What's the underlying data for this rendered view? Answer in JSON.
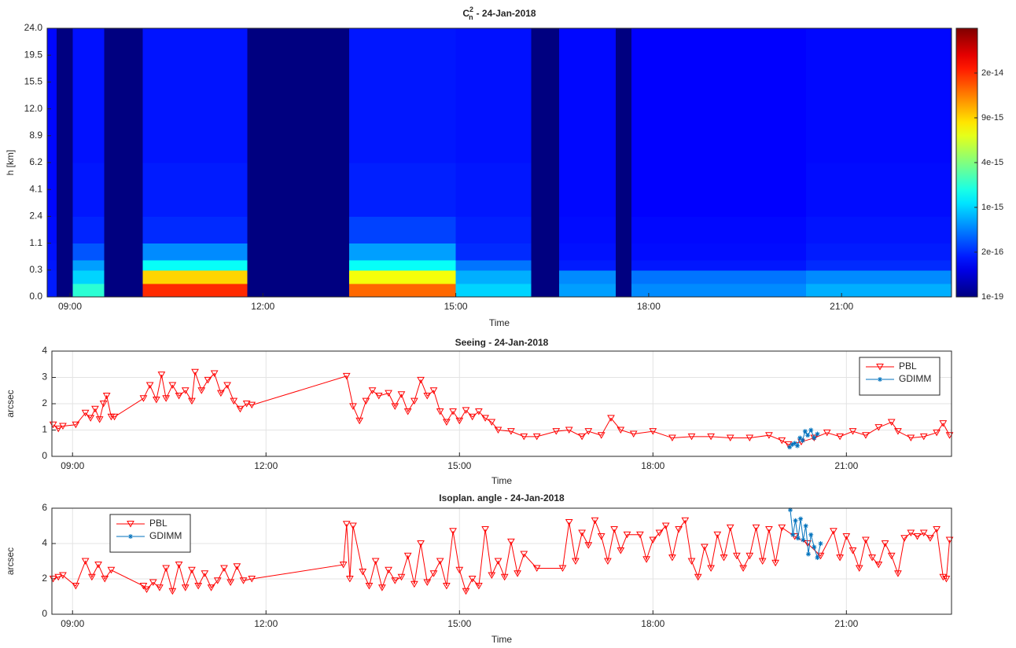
{
  "chart_data": [
    {
      "type": "heatmap",
      "title_symbol": "C",
      "title_sup": "2",
      "title_sub": "n",
      "title": "- 24-Jan-2018",
      "x_label": "Time",
      "y_label": "h [km]",
      "xlim": [
        8.645,
        22.71
      ],
      "xticks": [
        {
          "value": 9,
          "label": "09:00"
        },
        {
          "value": 12,
          "label": "12:00"
        },
        {
          "value": 15,
          "label": "15:00"
        },
        {
          "value": 18,
          "label": "18:00"
        },
        {
          "value": 21,
          "label": "21:00"
        }
      ],
      "ylim": [
        0,
        24
      ],
      "yticks": [
        {
          "value": 0,
          "label": "0.0"
        },
        0.3,
        1.1,
        2.4,
        4.1,
        6.2,
        8.9,
        {
          "value": 12,
          "label": "12.0"
        },
        15.5,
        19.5,
        {
          "value": 24,
          "label": "24.0"
        }
      ],
      "x_edges": [
        8.645,
        8.79,
        9.04,
        9.53,
        10.13,
        11.76,
        13.34,
        15.0,
        16.17,
        16.61,
        17.49,
        17.73,
        20.45,
        22.71
      ],
      "y_edges": [
        0,
        0.15,
        0.3,
        0.6,
        1.1,
        2.4,
        6.2,
        24
      ],
      "z": [
        [
          1e-16,
          1e-19,
          2e-15,
          1e-19,
          2e-14,
          1e-19,
          1.5e-14,
          1e-15,
          1e-19,
          6e-16,
          1e-19,
          5e-16,
          7e-16
        ],
        [
          1e-16,
          1e-19,
          1e-15,
          1e-19,
          9e-15,
          1e-19,
          7e-15,
          7e-16,
          1e-19,
          5e-16,
          1e-19,
          4e-16,
          5e-16
        ],
        [
          8e-17,
          1e-19,
          6e-16,
          1e-19,
          1.5e-15,
          1e-19,
          1.5e-15,
          4e-16,
          1e-19,
          1e-16,
          1e-19,
          8e-17,
          2e-16
        ],
        [
          6e-17,
          1e-19,
          3e-16,
          1e-19,
          5e-16,
          1e-19,
          6e-16,
          2e-16,
          1e-19,
          6e-17,
          1e-19,
          5e-17,
          1e-16
        ],
        [
          5e-17,
          1e-19,
          1.5e-16,
          1e-19,
          2e-16,
          1e-19,
          2.5e-16,
          1.2e-16,
          1e-19,
          5e-17,
          1e-19,
          4e-17,
          7e-17
        ],
        [
          4e-17,
          1e-19,
          8e-17,
          1e-19,
          1e-16,
          1e-19,
          1.2e-16,
          8e-17,
          1e-19,
          4e-17,
          1e-19,
          3e-17,
          5e-17
        ],
        [
          4e-17,
          1e-19,
          6e-17,
          1e-19,
          7e-17,
          1e-19,
          8e-17,
          6e-17,
          1e-19,
          4e-17,
          1e-19,
          3e-17,
          4e-17
        ]
      ],
      "colormap": "jet",
      "colorbar": {
        "clim": [
          1e-19,
          4e-14
        ],
        "ticks": [
          1e-19,
          2e-16,
          1e-15,
          4e-15,
          9e-15,
          2e-14
        ]
      },
      "grid": false
    },
    {
      "type": "line",
      "title": "Seeing - 24-Jan-2018",
      "x_label": "Time",
      "y_label": "arcsec",
      "xlim": [
        8.68,
        22.63
      ],
      "xticks": [
        {
          "value": 9,
          "label": "09:00"
        },
        {
          "value": 12,
          "label": "12:00"
        },
        {
          "value": 15,
          "label": "15:00"
        },
        {
          "value": 18,
          "label": "18:00"
        },
        {
          "value": 21,
          "label": "21:00"
        }
      ],
      "ylim": [
        0,
        4
      ],
      "yticks": [
        0,
        1,
        2,
        3,
        4
      ],
      "grid": true,
      "legend": "upper right",
      "series": [
        {
          "name": "PBL",
          "color": "#ff0000",
          "marker": "triangle-down",
          "x": [
            8.7,
            8.78,
            8.85,
            9.05,
            9.2,
            9.28,
            9.35,
            9.42,
            9.48,
            9.53,
            9.6,
            9.65,
            10.1,
            10.2,
            10.3,
            10.38,
            10.45,
            10.55,
            10.65,
            10.75,
            10.85,
            10.9,
            11.0,
            11.1,
            11.2,
            11.3,
            11.4,
            11.5,
            11.6,
            11.7,
            11.78,
            13.25,
            13.35,
            13.45,
            13.55,
            13.65,
            13.75,
            13.9,
            14.0,
            14.1,
            14.2,
            14.3,
            14.4,
            14.5,
            14.6,
            14.7,
            14.8,
            14.9,
            15.0,
            15.1,
            15.2,
            15.3,
            15.4,
            15.5,
            15.6,
            15.8,
            16.0,
            16.2,
            16.5,
            16.7,
            16.9,
            17.0,
            17.2,
            17.35,
            17.5,
            17.7,
            18.0,
            18.3,
            18.6,
            18.9,
            19.2,
            19.5,
            19.8,
            20.0,
            20.1,
            20.3,
            20.5,
            20.7,
            20.9,
            21.1,
            21.3,
            21.5,
            21.7,
            21.8,
            22.0,
            22.2,
            22.4,
            22.5,
            22.6
          ],
          "values": [
            1.2,
            1.05,
            1.15,
            1.2,
            1.65,
            1.45,
            1.8,
            1.4,
            2.0,
            2.3,
            1.5,
            1.5,
            2.2,
            2.7,
            2.15,
            3.1,
            2.2,
            2.7,
            2.3,
            2.5,
            2.1,
            3.2,
            2.5,
            2.9,
            3.15,
            2.4,
            2.7,
            2.1,
            1.8,
            2.0,
            1.95,
            3.05,
            1.9,
            1.35,
            2.1,
            2.5,
            2.3,
            2.4,
            1.9,
            2.35,
            1.7,
            2.1,
            2.9,
            2.3,
            2.5,
            1.7,
            1.3,
            1.7,
            1.35,
            1.75,
            1.5,
            1.7,
            1.45,
            1.3,
            1.0,
            0.95,
            0.75,
            0.75,
            0.95,
            1.0,
            0.75,
            0.95,
            0.8,
            1.45,
            1.0,
            0.85,
            0.95,
            0.7,
            0.75,
            0.75,
            0.7,
            0.7,
            0.8,
            0.6,
            0.45,
            0.55,
            0.7,
            0.9,
            0.75,
            0.95,
            0.8,
            1.1,
            1.3,
            0.95,
            0.7,
            0.75,
            0.9,
            1.25,
            0.8
          ]
        },
        {
          "name": "GDIMM",
          "color": "#0072bd",
          "marker": "asterisk",
          "x": [
            20.12,
            20.16,
            20.2,
            20.24,
            20.28,
            20.32,
            20.36,
            20.4,
            20.45,
            20.5,
            20.55
          ],
          "values": [
            0.35,
            0.45,
            0.5,
            0.4,
            0.7,
            0.6,
            0.95,
            0.8,
            1.0,
            0.7,
            0.85
          ]
        }
      ]
    },
    {
      "type": "line",
      "title": "Isoplan. angle - 24-Jan-2018",
      "x_label": "Time",
      "y_label": "arcsec",
      "xlim": [
        8.68,
        22.63
      ],
      "xticks": [
        {
          "value": 9,
          "label": "09:00"
        },
        {
          "value": 12,
          "label": "12:00"
        },
        {
          "value": 15,
          "label": "15:00"
        },
        {
          "value": 18,
          "label": "18:00"
        },
        {
          "value": 21,
          "label": "21:00"
        }
      ],
      "ylim": [
        0,
        6
      ],
      "yticks": [
        0,
        2,
        4,
        6
      ],
      "grid": true,
      "legend": "upper left",
      "series": [
        {
          "name": "PBL",
          "color": "#ff0000",
          "marker": "triangle-down",
          "x": [
            8.7,
            8.78,
            8.85,
            9.05,
            9.2,
            9.3,
            9.4,
            9.5,
            9.6,
            10.1,
            10.15,
            10.25,
            10.35,
            10.45,
            10.55,
            10.65,
            10.75,
            10.85,
            10.95,
            11.05,
            11.15,
            11.25,
            11.35,
            11.45,
            11.55,
            11.65,
            11.78,
            13.2,
            13.25,
            13.3,
            13.35,
            13.5,
            13.6,
            13.7,
            13.8,
            13.9,
            14.0,
            14.1,
            14.2,
            14.3,
            14.4,
            14.5,
            14.6,
            14.7,
            14.8,
            14.9,
            15.0,
            15.1,
            15.2,
            15.3,
            15.4,
            15.5,
            15.6,
            15.7,
            15.8,
            15.9,
            16.0,
            16.2,
            16.6,
            16.7,
            16.8,
            16.9,
            17.0,
            17.1,
            17.2,
            17.3,
            17.4,
            17.5,
            17.6,
            17.8,
            17.9,
            18.0,
            18.1,
            18.2,
            18.3,
            18.4,
            18.5,
            18.6,
            18.7,
            18.8,
            18.9,
            19.0,
            19.1,
            19.2,
            19.3,
            19.4,
            19.5,
            19.6,
            19.7,
            19.8,
            19.9,
            20.0,
            20.2,
            20.4,
            20.6,
            20.8,
            20.9,
            21.0,
            21.1,
            21.2,
            21.3,
            21.4,
            21.5,
            21.6,
            21.7,
            21.8,
            21.9,
            22.0,
            22.1,
            22.2,
            22.3,
            22.4,
            22.5,
            22.55,
            22.6
          ],
          "values": [
            2.0,
            2.1,
            2.2,
            1.6,
            3.0,
            2.1,
            2.8,
            2.0,
            2.5,
            1.6,
            1.4,
            1.8,
            1.5,
            2.6,
            1.3,
            2.8,
            1.5,
            2.5,
            1.6,
            2.3,
            1.5,
            1.9,
            2.6,
            1.8,
            2.7,
            1.9,
            2.0,
            2.8,
            5.1,
            2.0,
            5.0,
            2.4,
            1.6,
            3.0,
            1.5,
            2.5,
            1.9,
            2.1,
            3.3,
            1.7,
            4.0,
            1.8,
            2.3,
            3.0,
            1.6,
            4.7,
            2.5,
            1.3,
            2.0,
            1.6,
            4.8,
            2.2,
            3.0,
            2.1,
            4.1,
            2.3,
            3.4,
            2.6,
            2.6,
            5.2,
            3.0,
            4.6,
            3.9,
            5.3,
            4.4,
            3.0,
            4.8,
            3.6,
            4.5,
            4.5,
            3.1,
            4.2,
            4.6,
            5.0,
            3.2,
            4.8,
            5.3,
            3.0,
            2.1,
            3.8,
            2.6,
            4.5,
            3.2,
            4.9,
            3.3,
            2.6,
            3.3,
            4.9,
            3.0,
            4.8,
            2.9,
            4.9,
            4.4,
            4.0,
            3.3,
            4.7,
            3.2,
            4.4,
            3.6,
            2.6,
            4.2,
            3.2,
            2.8,
            4.0,
            3.3,
            2.3,
            4.3,
            4.6,
            4.4,
            4.6,
            4.3,
            4.8,
            2.1,
            2.0,
            4.2
          ]
        },
        {
          "name": "GDIMM",
          "color": "#0072bd",
          "marker": "asterisk",
          "x": [
            20.13,
            20.17,
            20.21,
            20.25,
            20.29,
            20.33,
            20.37,
            20.41,
            20.45,
            20.5,
            20.55,
            20.6
          ],
          "values": [
            5.9,
            4.5,
            5.3,
            4.3,
            5.4,
            4.2,
            5.0,
            3.4,
            4.5,
            3.8,
            3.2,
            4.0
          ]
        }
      ]
    }
  ]
}
